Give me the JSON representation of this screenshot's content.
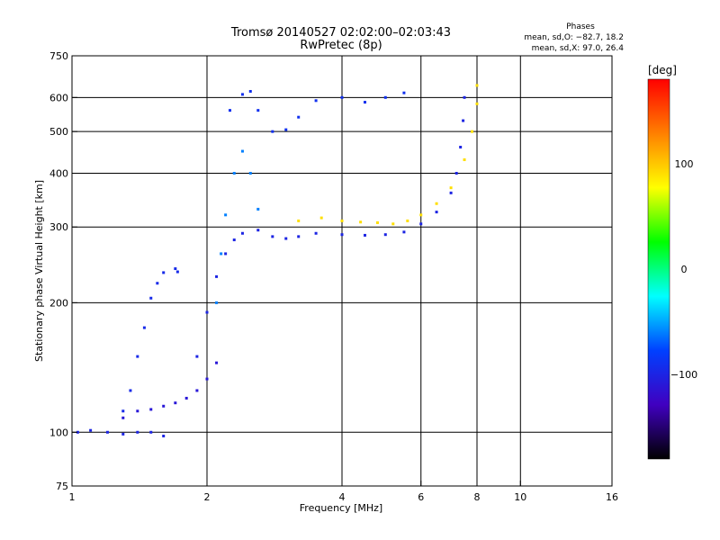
{
  "chart_data": {
    "type": "scatter",
    "title": "Tromsø 20140527 02:02:00–02:03:43",
    "subtitle": "RwPretec (8p)",
    "stats": {
      "title": "Phases",
      "line1": "mean, sd,O: −82.7, 18.2",
      "line2": "mean, sd,X:  97.0, 26.4"
    },
    "xlabel": "Frequency [MHz]",
    "ylabel": "Stationary phase Virtual Height [km]",
    "xscale": "log",
    "yscale": "log",
    "xlim": [
      1,
      16
    ],
    "ylim": [
      75,
      750
    ],
    "xticks": [
      1,
      2,
      4,
      6,
      8,
      10,
      16
    ],
    "xtick_labels": [
      "1",
      "2",
      "4",
      "6",
      "8",
      "10",
      "16"
    ],
    "xgrid": [
      2,
      4,
      6,
      8,
      10
    ],
    "yticks": [
      75,
      100,
      200,
      300,
      400,
      500,
      600,
      750
    ],
    "ytick_labels": [
      "75",
      "100",
      "200",
      "300",
      "400",
      "500",
      "600",
      "750"
    ],
    "ygrid": [
      100,
      200,
      300,
      400,
      500,
      600
    ],
    "grid": true,
    "colorbar": {
      "label": "[deg]",
      "range": [
        -180,
        180
      ],
      "ticks": [
        100,
        0,
        -100
      ],
      "tick_labels": [
        "100",
        "0",
        "−100"
      ],
      "colors": [
        "#ff0000",
        "#ff8000",
        "#ffff00",
        "#00ff00",
        "#00ffff",
        "#0040ff",
        "#4000c0",
        "#000000"
      ]
    },
    "traces": [
      {
        "name": "",
        "phase": -100,
        "points": [
          [
            1.03,
            100
          ],
          [
            1.1,
            101
          ],
          [
            1.2,
            100
          ],
          [
            1.3,
            99
          ],
          [
            1.4,
            100
          ],
          [
            1.5,
            100
          ],
          [
            1.6,
            98
          ]
        ]
      },
      {
        "name": "",
        "phase": -110,
        "points": [
          [
            1.3,
            108
          ],
          [
            1.4,
            112
          ],
          [
            1.5,
            113
          ],
          [
            1.6,
            115
          ],
          [
            1.7,
            117
          ],
          [
            1.8,
            120
          ],
          [
            1.9,
            125
          ],
          [
            2.0,
            133
          ],
          [
            2.1,
            145
          ]
        ]
      },
      {
        "name": "",
        "phase": -95,
        "points": [
          [
            1.3,
            112
          ],
          [
            1.35,
            125
          ],
          [
            1.4,
            150
          ],
          [
            1.45,
            175
          ],
          [
            1.5,
            205
          ],
          [
            1.55,
            222
          ],
          [
            1.6,
            235
          ],
          [
            1.7,
            240
          ],
          [
            1.72,
            236
          ]
        ]
      },
      {
        "name": "",
        "phase": -100,
        "points": [
          [
            1.9,
            150
          ],
          [
            2.0,
            190
          ],
          [
            2.1,
            230
          ],
          [
            2.2,
            260
          ],
          [
            2.3,
            280
          ],
          [
            2.4,
            290
          ],
          [
            2.6,
            295
          ],
          [
            2.8,
            285
          ],
          [
            3.0,
            282
          ],
          [
            3.2,
            285
          ],
          [
            3.5,
            290
          ],
          [
            4.0,
            288
          ],
          [
            4.5,
            287
          ],
          [
            5.0,
            288
          ],
          [
            5.5,
            292
          ],
          [
            6.0,
            305
          ],
          [
            6.5,
            325
          ],
          [
            7.0,
            360
          ],
          [
            7.2,
            400
          ],
          [
            7.35,
            460
          ],
          [
            7.45,
            530
          ],
          [
            7.5,
            600
          ]
        ]
      },
      {
        "name": "",
        "phase": 90,
        "points": [
          [
            3.2,
            310
          ],
          [
            3.6,
            315
          ],
          [
            4.0,
            310
          ],
          [
            4.4,
            308
          ],
          [
            4.8,
            307
          ],
          [
            5.2,
            305
          ],
          [
            5.6,
            310
          ],
          [
            6.0,
            320
          ],
          [
            6.5,
            340
          ],
          [
            7.0,
            370
          ],
          [
            7.5,
            430
          ],
          [
            7.8,
            500
          ],
          [
            8.0,
            580
          ],
          [
            8.0,
            640
          ]
        ]
      },
      {
        "name": "",
        "phase": -90,
        "points": [
          [
            2.25,
            560
          ],
          [
            2.4,
            610
          ],
          [
            2.5,
            620
          ],
          [
            2.6,
            560
          ],
          [
            2.8,
            500
          ],
          [
            3.0,
            505
          ],
          [
            3.2,
            540
          ],
          [
            3.5,
            590
          ],
          [
            4.0,
            600
          ],
          [
            4.5,
            585
          ],
          [
            5.0,
            600
          ],
          [
            5.5,
            615
          ]
        ]
      },
      {
        "name": "",
        "phase": -60,
        "points": [
          [
            2.1,
            200
          ],
          [
            2.15,
            260
          ],
          [
            2.2,
            320
          ],
          [
            2.3,
            400
          ],
          [
            2.4,
            450
          ],
          [
            2.5,
            400
          ],
          [
            2.6,
            330
          ]
        ]
      }
    ]
  }
}
